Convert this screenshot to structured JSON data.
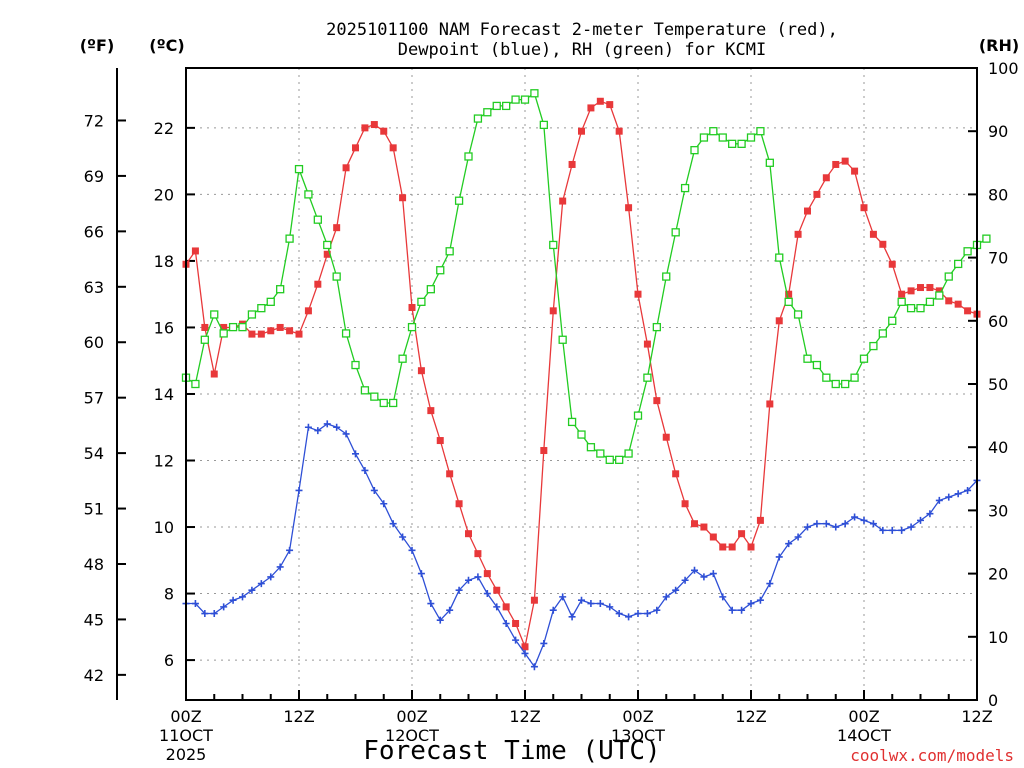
{
  "chart_data": {
    "type": "line",
    "title_lines": [
      "2025101100 NAM Forecast 2-meter Temperature (red),",
      "Dewpoint (blue), RH (green) for KCMI"
    ],
    "xlabel": "Forecast Time (UTC)",
    "credit": "coolwx.com/models",
    "units": {
      "fahrenheit": "(ºF)",
      "celsius": "(ºC)",
      "rh": "(RH)"
    },
    "x_range_hours": [
      0,
      84
    ],
    "x_ticks": [
      {
        "hour": 0,
        "lines": [
          "00Z",
          "11OCT",
          "2025"
        ]
      },
      {
        "hour": 12,
        "lines": [
          "12Z"
        ]
      },
      {
        "hour": 24,
        "lines": [
          "00Z",
          "12OCT"
        ]
      },
      {
        "hour": 36,
        "lines": [
          "12Z"
        ]
      },
      {
        "hour": 48,
        "lines": [
          "00Z",
          "13OCT"
        ]
      },
      {
        "hour": 60,
        "lines": [
          "12Z"
        ]
      },
      {
        "hour": 72,
        "lines": [
          "00Z",
          "14OCT"
        ]
      },
      {
        "hour": 84,
        "lines": [
          "12Z"
        ]
      }
    ],
    "celsius_axis": {
      "range": [
        4.8,
        23.8
      ],
      "ticks": [
        6,
        8,
        10,
        12,
        14,
        16,
        18,
        20,
        22
      ]
    },
    "fahrenheit_axis": {
      "ticks": [
        42,
        45,
        48,
        51,
        54,
        57,
        60,
        63,
        66,
        69,
        72
      ]
    },
    "rh_axis": {
      "range": [
        0,
        100
      ],
      "ticks": [
        0,
        10,
        20,
        30,
        40,
        50,
        60,
        70,
        80,
        90,
        100
      ]
    },
    "series": [
      {
        "name": "Temperature",
        "units": "C",
        "color": "#e8383a",
        "marker": "filled-square",
        "values": [
          17.9,
          18.3,
          16.0,
          14.6,
          16.0,
          16.0,
          16.1,
          15.8,
          15.8,
          15.9,
          16.0,
          15.9,
          15.8,
          16.5,
          17.3,
          18.2,
          19.0,
          20.8,
          21.4,
          22.0,
          22.1,
          21.9,
          21.4,
          19.9,
          16.6,
          14.7,
          13.5,
          12.6,
          11.6,
          10.7,
          9.8,
          9.2,
          8.6,
          8.1,
          7.6,
          7.1,
          6.4,
          7.8,
          12.3,
          16.5,
          19.8,
          20.9,
          21.9,
          22.6,
          22.8,
          22.7,
          21.9,
          19.6,
          17.0,
          15.5,
          13.8,
          12.7,
          11.6,
          10.7,
          10.1,
          10.0,
          9.7,
          9.4,
          9.4,
          9.8,
          9.4,
          10.2,
          13.7,
          16.2,
          17.0,
          18.8,
          19.5,
          20.0,
          20.5,
          20.9,
          21.0,
          20.7,
          19.6,
          18.8,
          18.5,
          17.9,
          17.0,
          17.1,
          17.2,
          17.2,
          17.1,
          16.8,
          16.7,
          16.5,
          16.4
        ]
      },
      {
        "name": "Dewpoint",
        "units": "C",
        "color": "#2e4fd6",
        "marker": "plus",
        "values": [
          7.7,
          7.7,
          7.4,
          7.4,
          7.6,
          7.8,
          7.9,
          8.1,
          8.3,
          8.5,
          8.8,
          9.3,
          11.1,
          13.0,
          12.9,
          13.1,
          13.0,
          12.8,
          12.2,
          11.7,
          11.1,
          10.7,
          10.1,
          9.7,
          9.3,
          8.6,
          7.7,
          7.2,
          7.5,
          8.1,
          8.4,
          8.5,
          8.0,
          7.6,
          7.1,
          6.6,
          6.2,
          5.8,
          6.5,
          7.5,
          7.9,
          7.3,
          7.8,
          7.7,
          7.7,
          7.6,
          7.4,
          7.3,
          7.4,
          7.4,
          7.5,
          7.9,
          8.1,
          8.4,
          8.7,
          8.5,
          8.6,
          7.9,
          7.5,
          7.5,
          7.7,
          7.8,
          8.3,
          9.1,
          9.5,
          9.7,
          10.0,
          10.1,
          10.1,
          10.0,
          10.1,
          10.3,
          10.2,
          10.1,
          9.9,
          9.9,
          9.9,
          10.0,
          10.2,
          10.4,
          10.8,
          10.9,
          11.0,
          11.1,
          11.4
        ]
      },
      {
        "name": "RH",
        "units": "%",
        "color": "#22cc22",
        "marker": "hollow-square",
        "values": [
          51,
          50,
          57,
          61,
          58,
          59,
          59,
          61,
          62,
          63,
          65,
          73,
          84,
          80,
          76,
          72,
          67,
          58,
          53,
          49,
          48,
          47,
          47,
          54,
          59,
          63,
          65,
          68,
          71,
          79,
          86,
          92,
          93,
          94,
          94,
          95,
          95,
          96,
          91,
          72,
          57,
          44,
          42,
          40,
          39,
          38,
          38,
          39,
          45,
          51,
          59,
          67,
          74,
          81,
          87,
          89,
          90,
          89,
          88,
          88,
          89,
          90,
          85,
          70,
          63,
          61,
          54,
          53,
          51,
          50,
          50,
          51,
          54,
          56,
          58,
          60,
          63,
          62,
          62,
          63,
          64,
          67,
          69,
          71,
          72,
          73
        ]
      }
    ],
    "grid": true
  }
}
